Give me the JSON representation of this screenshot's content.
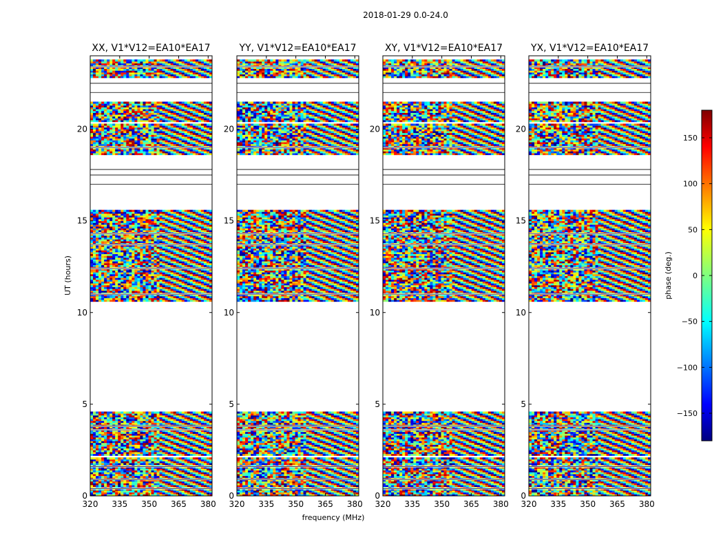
{
  "figure_title": "2018-01-29 0.0-24.0",
  "colorbar": {
    "label": "phase (deg.)",
    "min": -180,
    "max": 180,
    "ticks": [
      -150,
      -100,
      -50,
      0,
      50,
      100,
      150
    ],
    "tick_labels": [
      "−150",
      "−100",
      "−50",
      "0",
      "50",
      "100",
      "150"
    ],
    "colormap": "jet",
    "colors": [
      "#00007f",
      "#0000ff",
      "#007fff",
      "#00ffff",
      "#7fff7f",
      "#ffff00",
      "#ff7f00",
      "#ff0000",
      "#7f0000"
    ]
  },
  "chart_data": {
    "type": "heatmap",
    "description": "Dynamic spectra of visibility phase vs frequency and UT",
    "xlabel": "frequency (MHz)",
    "ylabel": "UT (hours)",
    "xlim": [
      320,
      382
    ],
    "ylim": [
      0,
      24
    ],
    "xticks": [
      320,
      335,
      350,
      365,
      380
    ],
    "xtick_labels": [
      "320",
      "335",
      "350",
      "365",
      "380"
    ],
    "yticks": [
      0,
      5,
      10,
      15,
      20
    ],
    "ytick_labels": [
      "0",
      "5",
      "10",
      "15",
      "20"
    ],
    "data_bands_ut": [
      [
        0.0,
        2.1
      ],
      [
        2.2,
        4.6
      ],
      [
        10.6,
        15.6
      ],
      [
        18.6,
        20.3
      ],
      [
        20.4,
        21.5
      ],
      [
        22.8,
        23.8
      ]
    ],
    "blank_lines_ut": [
      0.4,
      0.9,
      1.6,
      3.6,
      3.8,
      11.0,
      12.4,
      13.7,
      14.3,
      17.0,
      17.5,
      17.8,
      19.0,
      22.0,
      22.5,
      23.4
    ],
    "panels": [
      {
        "title": "XX, V1*V12=EA10*EA17"
      },
      {
        "title": "YY, V1*V12=EA10*EA17"
      },
      {
        "title": "XY, V1*V12=EA10*EA17"
      },
      {
        "title": "YX, V1*V12=EA10*EA17"
      }
    ]
  }
}
